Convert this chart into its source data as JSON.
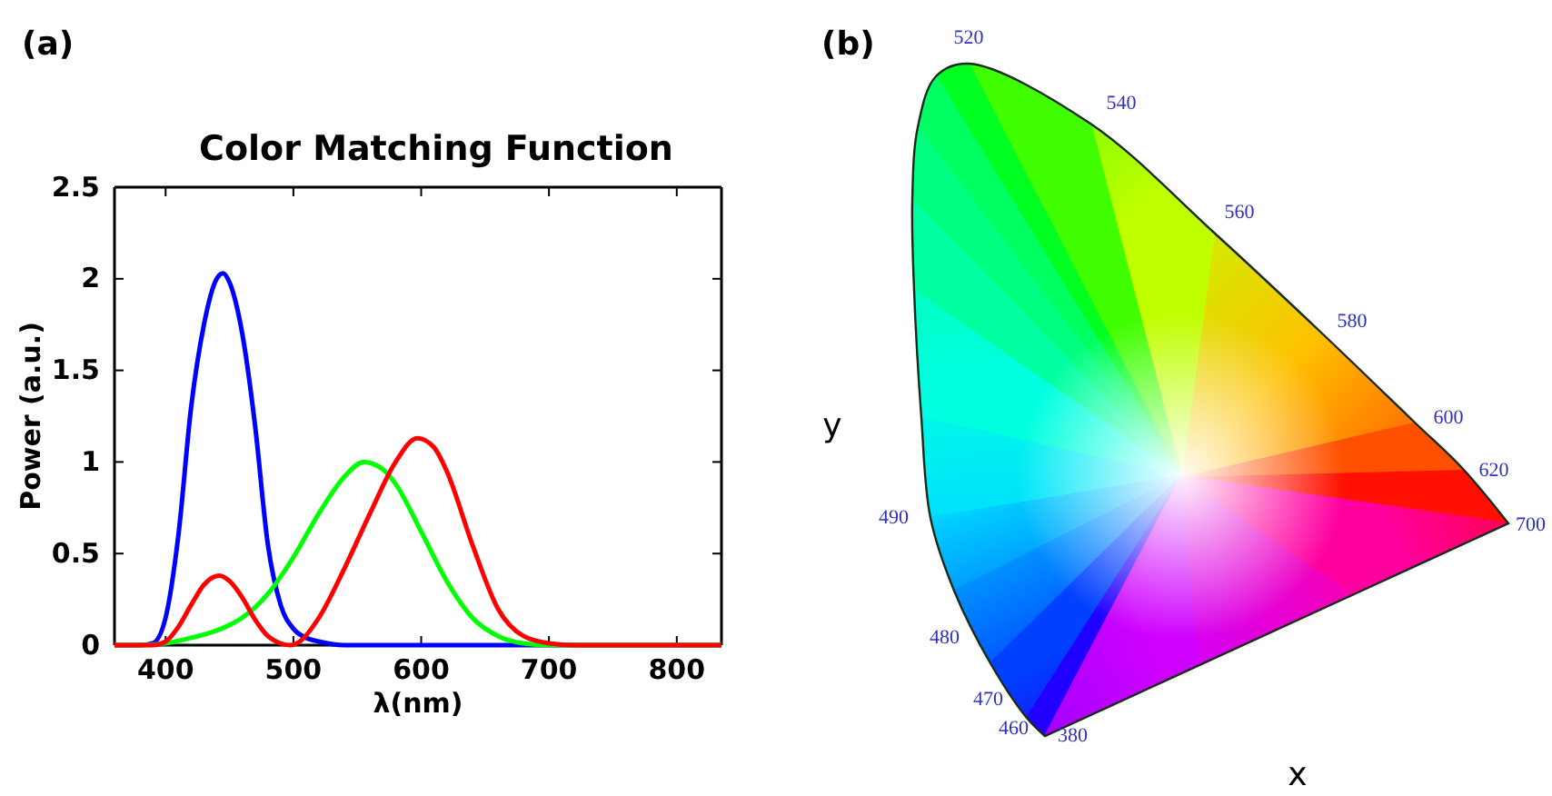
{
  "chart_data": [
    {
      "type": "line",
      "title": "Color Matching Function",
      "xlabel": "λ(nm)",
      "ylabel": "Power (a.u.)",
      "annotations": [
        "(a)"
      ],
      "xlim": [
        360,
        835
      ],
      "ylim": [
        0,
        2.5
      ],
      "xticks": [
        400,
        500,
        600,
        700,
        800
      ],
      "yticks": [
        0,
        0.5,
        1,
        1.5,
        2,
        2.5
      ],
      "grid": false,
      "line_style": "solid",
      "series": [
        {
          "color": "#0000ff",
          "x": [
            360,
            380,
            390,
            400,
            410,
            420,
            430,
            440,
            445,
            450,
            460,
            470,
            480,
            490,
            500,
            510,
            520,
            540,
            560,
            600,
            700,
            835
          ],
          "values": [
            0,
            0,
            0.01,
            0.15,
            0.6,
            1.3,
            1.75,
            2.0,
            2.03,
            1.98,
            1.7,
            1.2,
            0.55,
            0.22,
            0.09,
            0.04,
            0.02,
            0,
            0,
            0,
            0,
            0
          ]
        },
        {
          "color": "#00ff00",
          "x": [
            360,
            380,
            400,
            420,
            440,
            460,
            480,
            500,
            520,
            540,
            555,
            570,
            580,
            600,
            620,
            640,
            660,
            680,
            700,
            835
          ],
          "values": [
            0,
            0,
            0.01,
            0.04,
            0.08,
            0.15,
            0.28,
            0.48,
            0.72,
            0.92,
            1.0,
            0.96,
            0.88,
            0.62,
            0.35,
            0.15,
            0.05,
            0.01,
            0,
            0
          ]
        },
        {
          "color": "#ff0000",
          "x": [
            360,
            390,
            400,
            410,
            420,
            430,
            442,
            450,
            460,
            470,
            480,
            490,
            497,
            505,
            520,
            540,
            560,
            580,
            597,
            610,
            620,
            640,
            660,
            680,
            700,
            720,
            835
          ],
          "values": [
            0,
            0,
            0.02,
            0.1,
            0.22,
            0.33,
            0.38,
            0.35,
            0.26,
            0.14,
            0.05,
            0.01,
            0,
            0.02,
            0.15,
            0.42,
            0.72,
            1.0,
            1.13,
            1.08,
            0.95,
            0.55,
            0.2,
            0.05,
            0.01,
            0,
            0
          ]
        }
      ]
    },
    {
      "type": "other",
      "xlabel": "x",
      "ylabel": "y",
      "annotations": [
        "(b)",
        "520",
        "540",
        "560",
        "580",
        "600",
        "620",
        "700",
        "490",
        "480",
        "470",
        "460",
        "380"
      ]
    }
  ]
}
